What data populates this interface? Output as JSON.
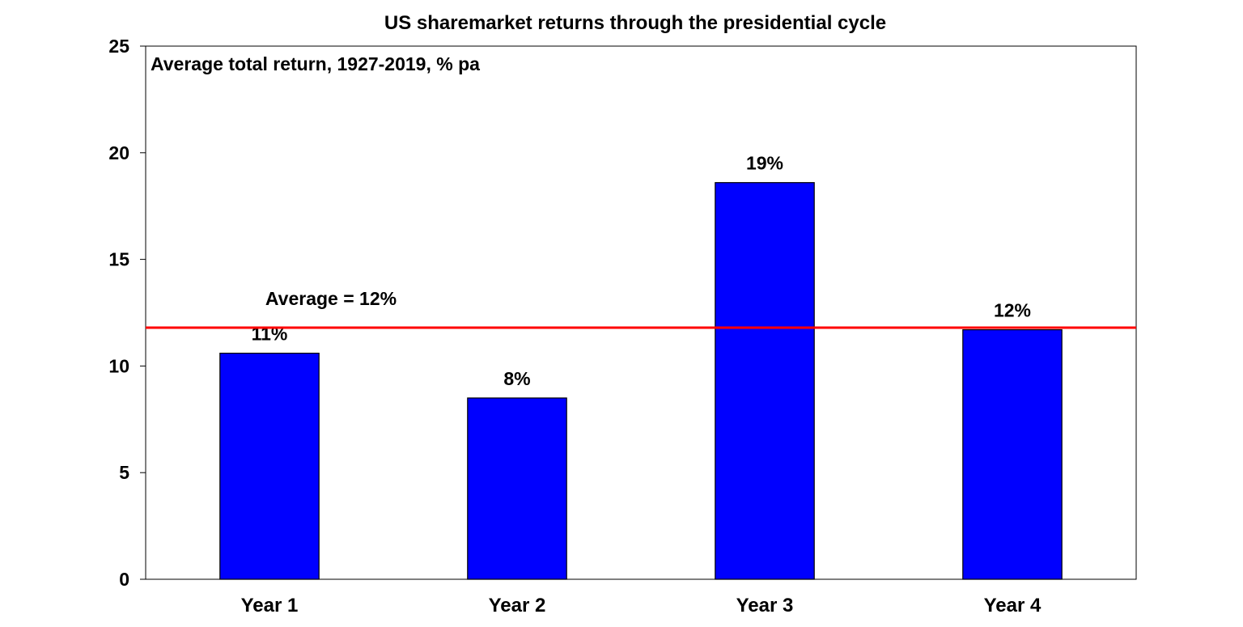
{
  "chart_data": {
    "type": "bar",
    "title": "US sharemarket returns through the presidential cycle",
    "subtitle": "Average total return, 1927-2019, % pa",
    "categories": [
      "Year 1",
      "Year 2",
      "Year 3",
      "Year 4"
    ],
    "values": [
      10.6,
      8.5,
      18.6,
      11.7
    ],
    "data_labels": [
      "11%",
      "8%",
      "19%",
      "12%"
    ],
    "ylim": [
      0,
      25
    ],
    "yticks": [
      0,
      5,
      10,
      15,
      20,
      25
    ],
    "grid": false,
    "reference_line": {
      "value": 11.8,
      "label": "Average = 12%"
    },
    "colors": {
      "bar": "#0000ff",
      "bar_border": "#000000",
      "reference_line": "#ff0000",
      "axis": "#000000"
    }
  }
}
